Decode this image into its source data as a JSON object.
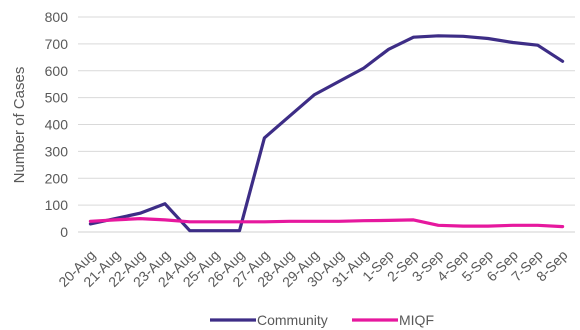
{
  "chart_data": {
    "type": "line",
    "title": "",
    "xlabel": "",
    "ylabel": "Number of Cases",
    "ylim": [
      0,
      800
    ],
    "yticks": [
      0,
      100,
      200,
      300,
      400,
      500,
      600,
      700,
      800
    ],
    "grid": true,
    "legend_position": "bottom",
    "categories": [
      "20-Aug",
      "21-Aug",
      "22-Aug",
      "23-Aug",
      "24-Aug",
      "25-Aug",
      "26-Aug",
      "27-Aug",
      "28-Aug",
      "29-Aug",
      "30-Aug",
      "31-Aug",
      "1-Sep",
      "2-Sep",
      "3-Sep",
      "4-Sep",
      "5-Sep",
      "6-Sep",
      "7-Sep",
      "8-Sep"
    ],
    "series": [
      {
        "name": "Community",
        "color": "#3d2d86",
        "values": [
          30,
          50,
          70,
          105,
          5,
          5,
          5,
          350,
          430,
          510,
          560,
          610,
          680,
          725,
          730,
          728,
          720,
          705,
          695,
          635
        ]
      },
      {
        "name": "MIQF",
        "color": "#e6189e",
        "values": [
          40,
          45,
          50,
          45,
          38,
          38,
          38,
          38,
          40,
          40,
          40,
          42,
          43,
          45,
          25,
          22,
          22,
          25,
          25,
          20
        ]
      }
    ]
  }
}
